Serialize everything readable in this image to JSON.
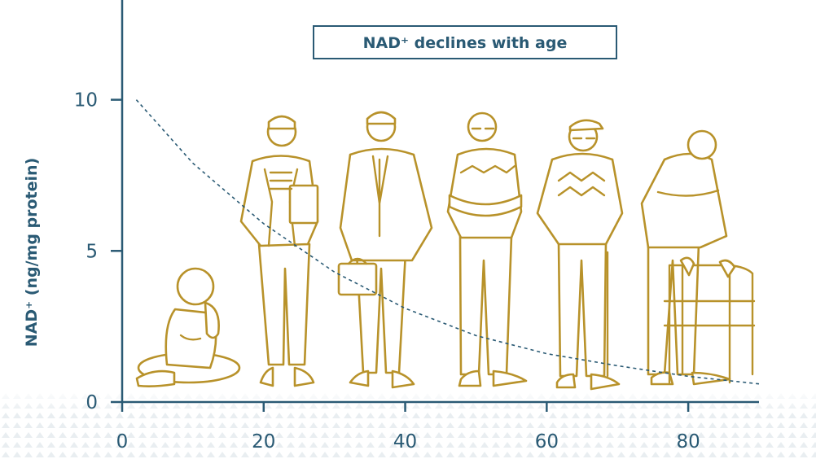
{
  "chart_data": {
    "type": "line",
    "title": "NAD⁺ declines with age",
    "xlabel": "",
    "ylabel": "NAD⁺ (ng/mg protein)",
    "x_ticks": [
      "0",
      "20",
      "40",
      "60",
      "80"
    ],
    "y_ticks": [
      "0",
      "5",
      "10"
    ],
    "xlim": [
      0,
      90
    ],
    "ylim": [
      0,
      13.3
    ],
    "grid": false,
    "series": [
      {
        "style": "dashed",
        "x": [
          2,
          10,
          20,
          30,
          40,
          50,
          60,
          70,
          80,
          90
        ],
        "y": [
          10,
          7.9,
          5.9,
          4.3,
          3.1,
          2.2,
          1.6,
          1.2,
          0.85,
          0.6
        ]
      }
    ],
    "illustration_ages": [
      10,
      23,
      40,
      53,
      68,
      82
    ]
  },
  "colors": {
    "axis": "#2a5a74",
    "figures": "#b8922a",
    "curve": "#2a5a74"
  }
}
